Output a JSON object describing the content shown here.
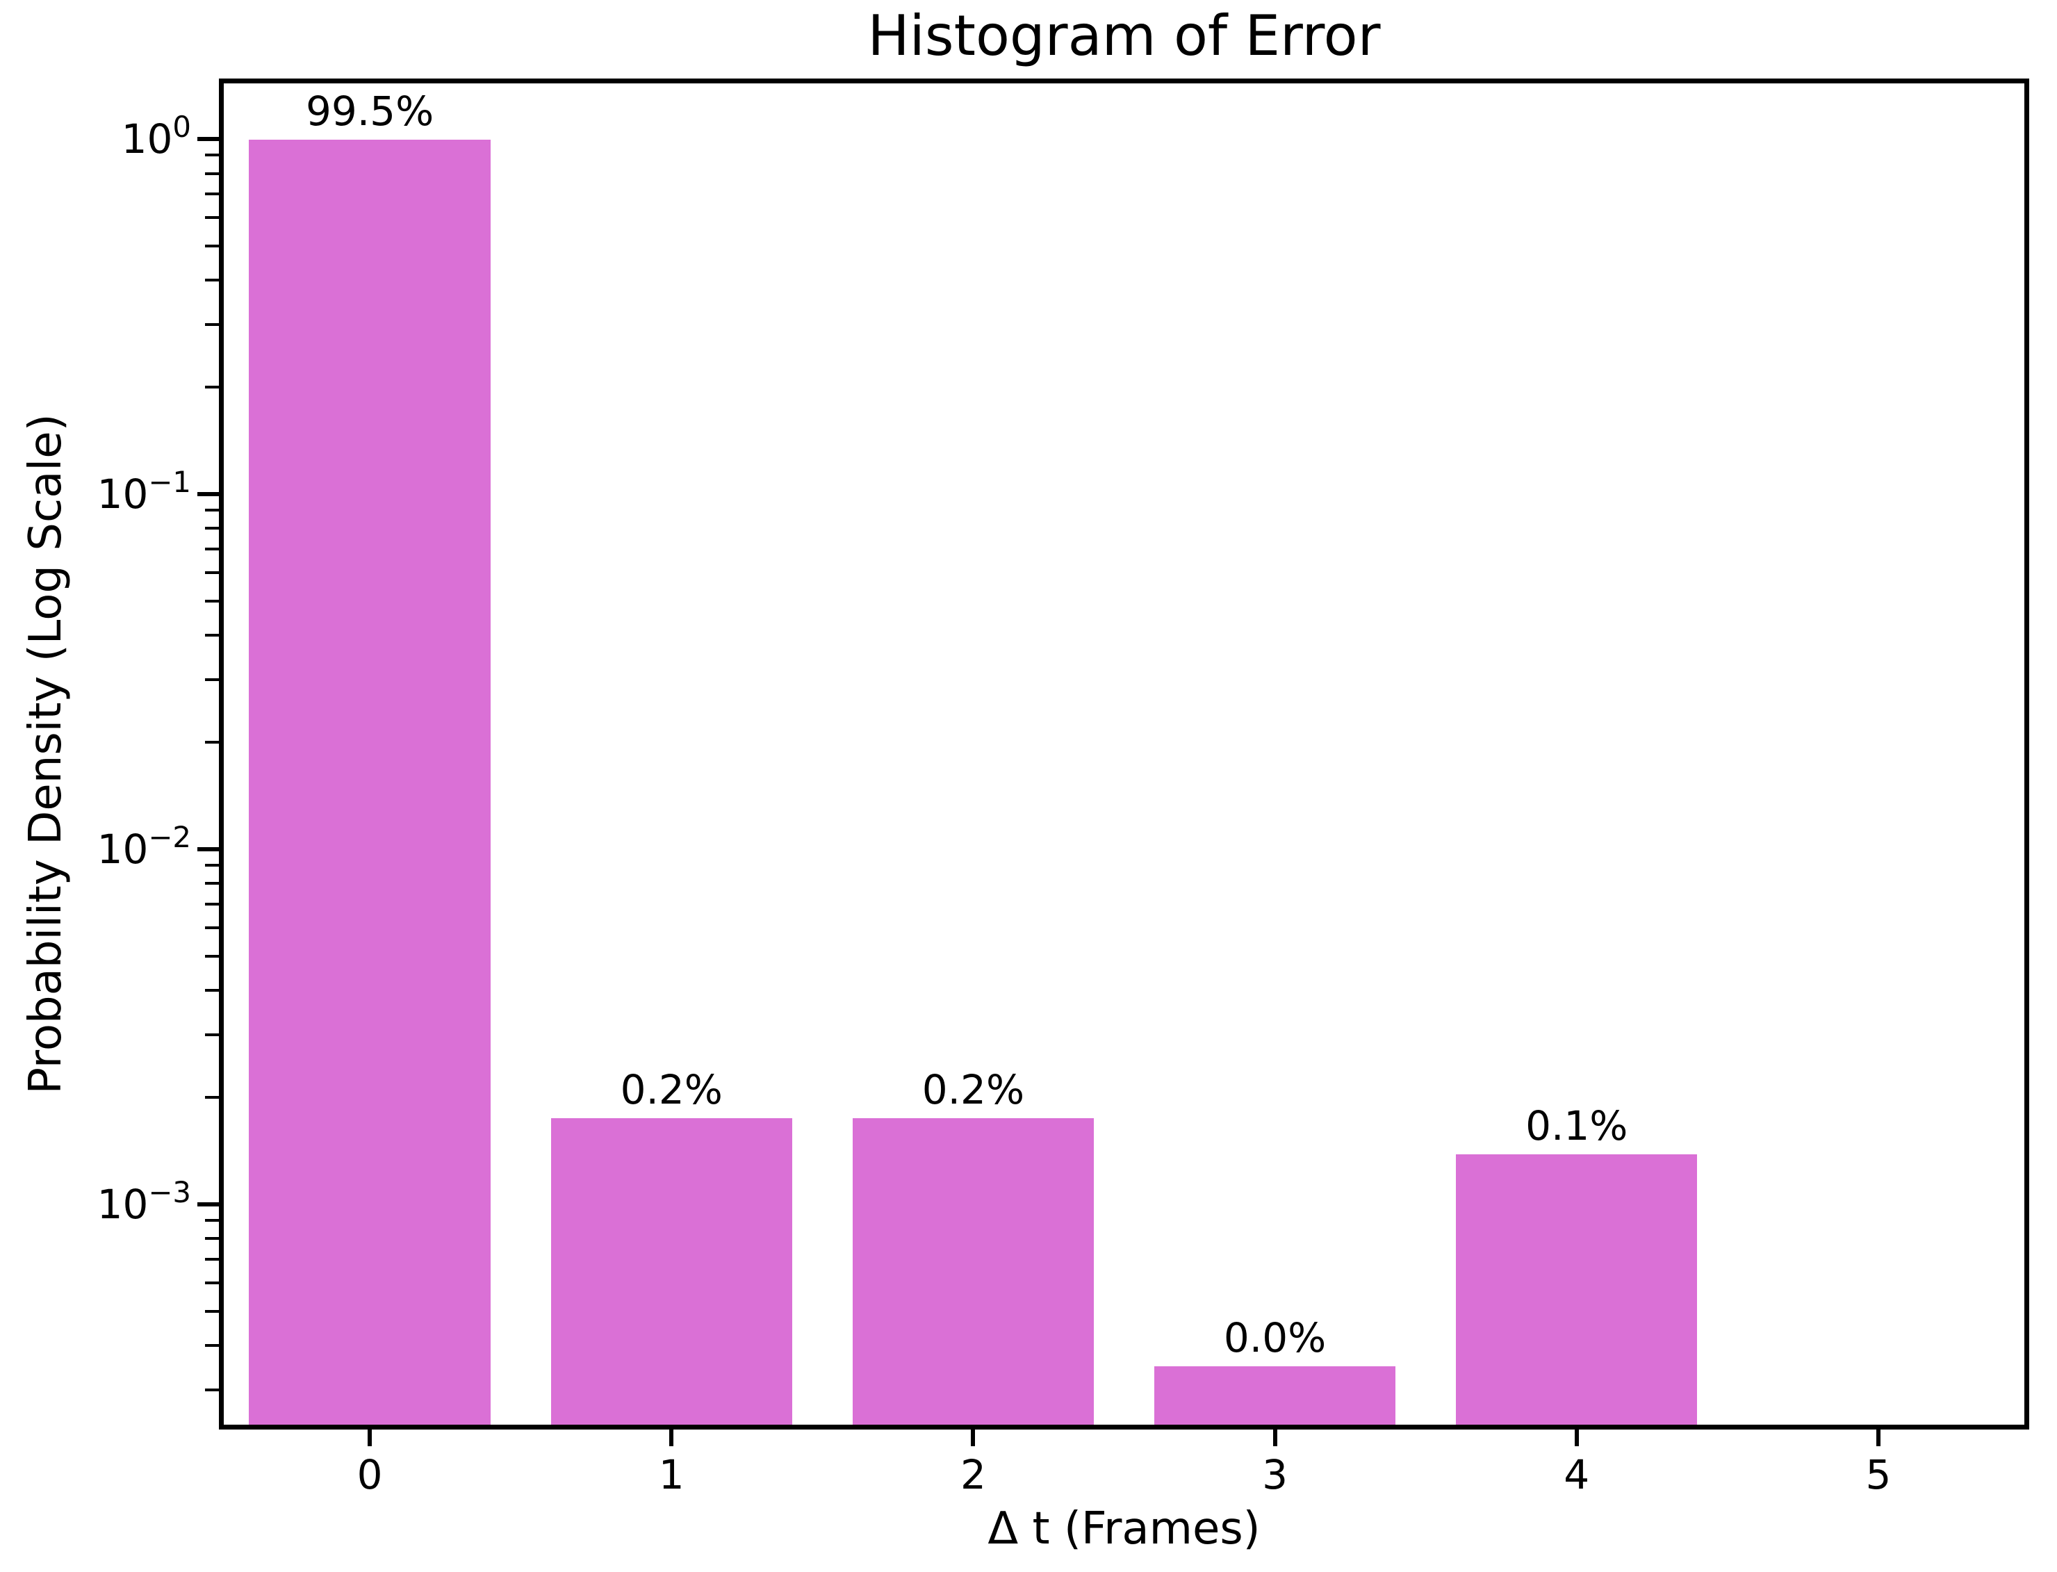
{
  "chart_data": {
    "type": "bar",
    "title": "Histogram of Error",
    "xlabel": "Δ t (Frames)",
    "ylabel": "Probability Density (Log Scale)",
    "x": [
      0,
      1,
      2,
      3,
      4
    ],
    "values": [
      0.995,
      0.00175,
      0.00175,
      0.00035,
      0.00138
    ],
    "bar_labels": [
      "99.5%",
      "0.2%",
      "0.2%",
      "0.0%",
      "0.1%"
    ],
    "bar_width": 0.8,
    "bar_color": "#DA70D6",
    "xticks": [
      0,
      1,
      2,
      3,
      4,
      5
    ],
    "xlim": [
      -0.5,
      5.5
    ],
    "ylim": [
      0.000232,
      1.48
    ],
    "yscale": "log",
    "ytick_exponents": [
      0,
      -1,
      -2,
      -3
    ],
    "minor_tick_decades": [
      0,
      -1,
      -2,
      -3,
      -4
    ],
    "grid": false,
    "legend": null,
    "text_color": "#000000",
    "background_color": "#ffffff"
  }
}
